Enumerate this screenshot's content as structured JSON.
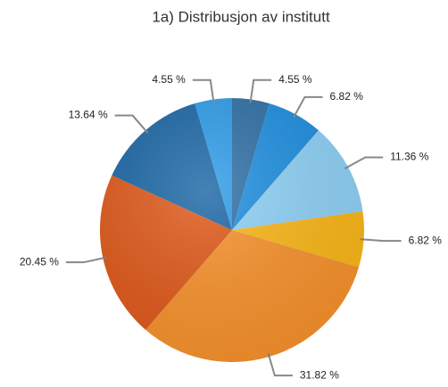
{
  "chart_data": {
    "type": "pie",
    "title": "1a) Distribusjon av institutt",
    "values": [
      4.55,
      6.82,
      11.36,
      6.82,
      31.82,
      20.45,
      13.64,
      4.55
    ],
    "value_labels": [
      "4.55 %",
      "6.82 %",
      "11.36 %",
      "6.82 %",
      "31.82 %",
      "20.45 %",
      "13.64 %",
      "4.55 %"
    ],
    "colors": [
      "#2f6fa6",
      "#1f8fe0",
      "#8fd1f6",
      "#fbb718",
      "#f8922c",
      "#e0591a",
      "#1b67a6",
      "#2e9ce8"
    ]
  }
}
